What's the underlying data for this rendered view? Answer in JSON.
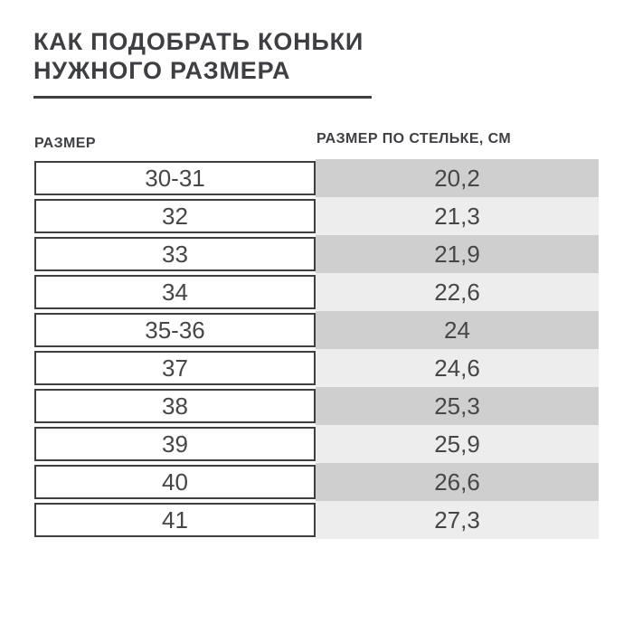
{
  "title": {
    "line1": "КАК ПОДОБРАТЬ КОНЬКИ",
    "line2": "НУЖНОГО РАЗМЕРА"
  },
  "chart_data": {
    "type": "table",
    "title": "КАК ПОДОБРАТЬ КОНЬКИ НУЖНОГО РАЗМЕРА",
    "columns": [
      "РАЗМЕР",
      "РАЗМЕР ПО СТЕЛЬКЕ, СМ"
    ],
    "rows": [
      [
        "30-31",
        "20,2"
      ],
      [
        "32",
        "21,3"
      ],
      [
        "33",
        "21,9"
      ],
      [
        "34",
        "22,6"
      ],
      [
        "35-36",
        "24"
      ],
      [
        "37",
        "24,6"
      ],
      [
        "38",
        "25,3"
      ],
      [
        "39",
        "25,9"
      ],
      [
        "40",
        "26,6"
      ],
      [
        "41",
        "27,3"
      ]
    ]
  },
  "colors": {
    "ink": "#3d3f42",
    "cell_text": "#464646",
    "cell_border": "#3f3f3f",
    "band_dark": "#cfcfcf",
    "band_light": "#ededed",
    "background": "#ffffff"
  }
}
